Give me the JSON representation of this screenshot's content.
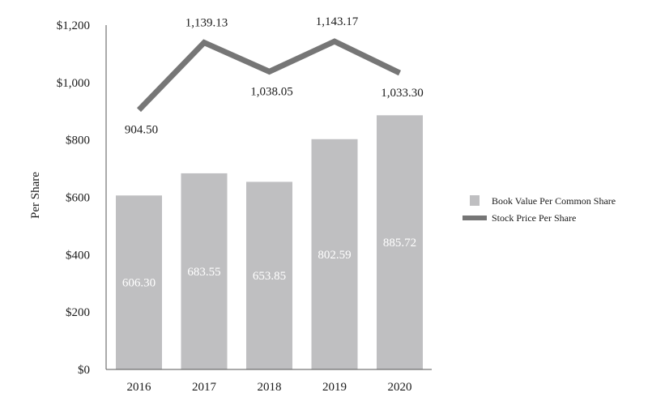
{
  "chart_data": {
    "type": "bar",
    "categories": [
      "2016",
      "2017",
      "2018",
      "2019",
      "2020"
    ],
    "ylabel": "Per Share",
    "xlabel": "",
    "ylim": [
      0,
      1200
    ],
    "yticks": [
      0,
      200,
      400,
      600,
      800,
      1000,
      1200
    ],
    "ytick_labels": [
      "$0",
      "$200",
      "$400",
      "$600",
      "$800",
      "$1,000",
      "$1,200"
    ],
    "grid": false,
    "legend_position": "right",
    "series": [
      {
        "name": "Book Value Per Common Share",
        "type": "bar",
        "color": "#bfbfc1",
        "values": [
          606.3,
          683.55,
          653.85,
          802.59,
          885.72
        ],
        "labels": [
          "606.30",
          "683.55",
          "653.85",
          "802.59",
          "885.72"
        ]
      },
      {
        "name": "Stock Price Per Share",
        "type": "line",
        "color": "#767676",
        "values": [
          904.5,
          1139.13,
          1038.05,
          1143.17,
          1033.3
        ],
        "labels": [
          "904.50",
          "1,139.13",
          "1,038.05",
          "1,143.17",
          "1,033.30"
        ]
      }
    ]
  }
}
